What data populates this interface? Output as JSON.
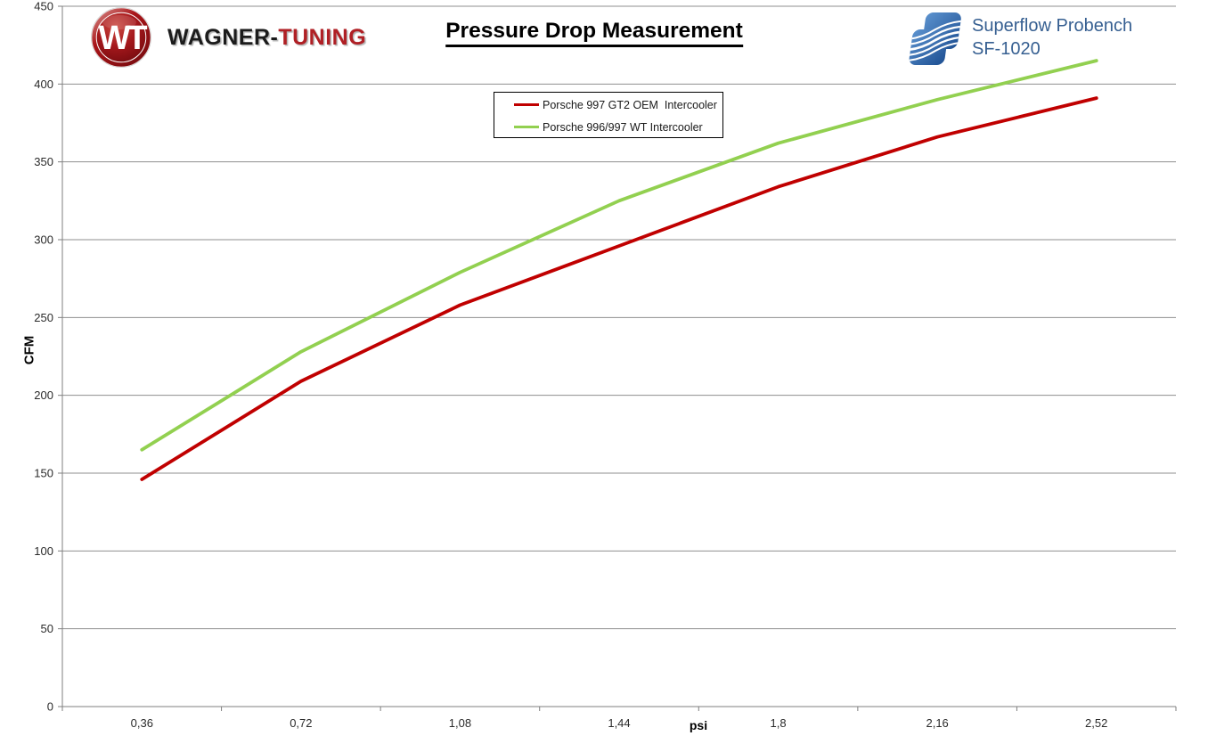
{
  "logos": {
    "wagner": {
      "monogram": "WT",
      "part1": "WAGNER-",
      "part2": "TUNING"
    },
    "superflow": {
      "line1": "Superflow Probench",
      "line2": "SF-1020"
    }
  },
  "chart_data": {
    "type": "line",
    "title": "Pressure Drop Measurement",
    "xlabel": "psi",
    "ylabel": "CFM",
    "categories": [
      "0,36",
      "0,72",
      "1,08",
      "1,44",
      "1,8",
      "2,16",
      "2,52"
    ],
    "series": [
      {
        "name": "Porsche 997 GT2 OEM  Intercooler",
        "color": "#C00000",
        "values": [
          146,
          209,
          258,
          296,
          334,
          366,
          391
        ]
      },
      {
        "name": "Porsche 996/997 WT Intercooler",
        "color": "#92D050",
        "values": [
          165,
          228,
          279,
          325,
          362,
          390,
          415
        ]
      }
    ],
    "ylim": [
      0,
      450
    ],
    "ytick_step": 50,
    "grid": true,
    "legend_position": "top-center"
  },
  "colors": {
    "grid": "#8f8f8f",
    "axis": "#7f7f7f",
    "tick_text": "#2b2b2b"
  }
}
